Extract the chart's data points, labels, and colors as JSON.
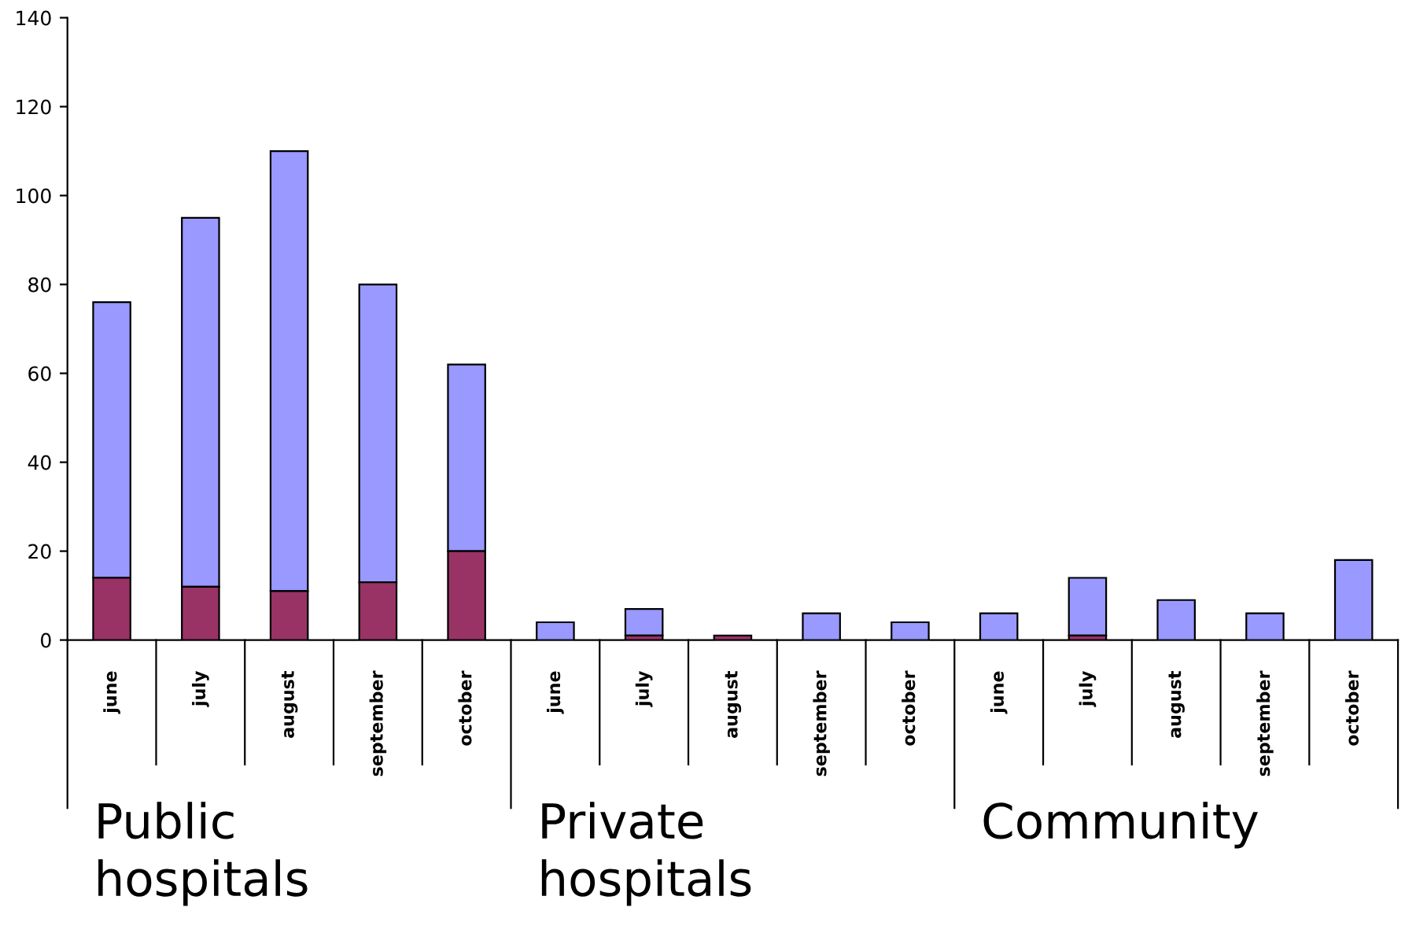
{
  "chart_data": {
    "type": "bar",
    "stacked": true,
    "categories": [
      "june",
      "july",
      "august",
      "september",
      "october",
      "june",
      "july",
      "august",
      "september",
      "october",
      "june",
      "july",
      "august",
      "september",
      "october"
    ],
    "series": [
      {
        "color": "#993366",
        "values": [
          14,
          12,
          11,
          13,
          20,
          0,
          1,
          1,
          0,
          0,
          0,
          1,
          0,
          0,
          0
        ]
      },
      {
        "color": "#9999ff",
        "values": [
          62,
          83,
          99,
          67,
          42,
          4,
          6,
          0,
          6,
          4,
          6,
          13,
          9,
          6,
          18
        ]
      }
    ],
    "ylim": [
      0,
      140
    ],
    "yticks": [
      0,
      20,
      40,
      60,
      80,
      100,
      120,
      140
    ],
    "annotations": [
      "Public\nhospitals",
      "Private\nhospitals",
      "Community"
    ],
    "grid": false
  }
}
